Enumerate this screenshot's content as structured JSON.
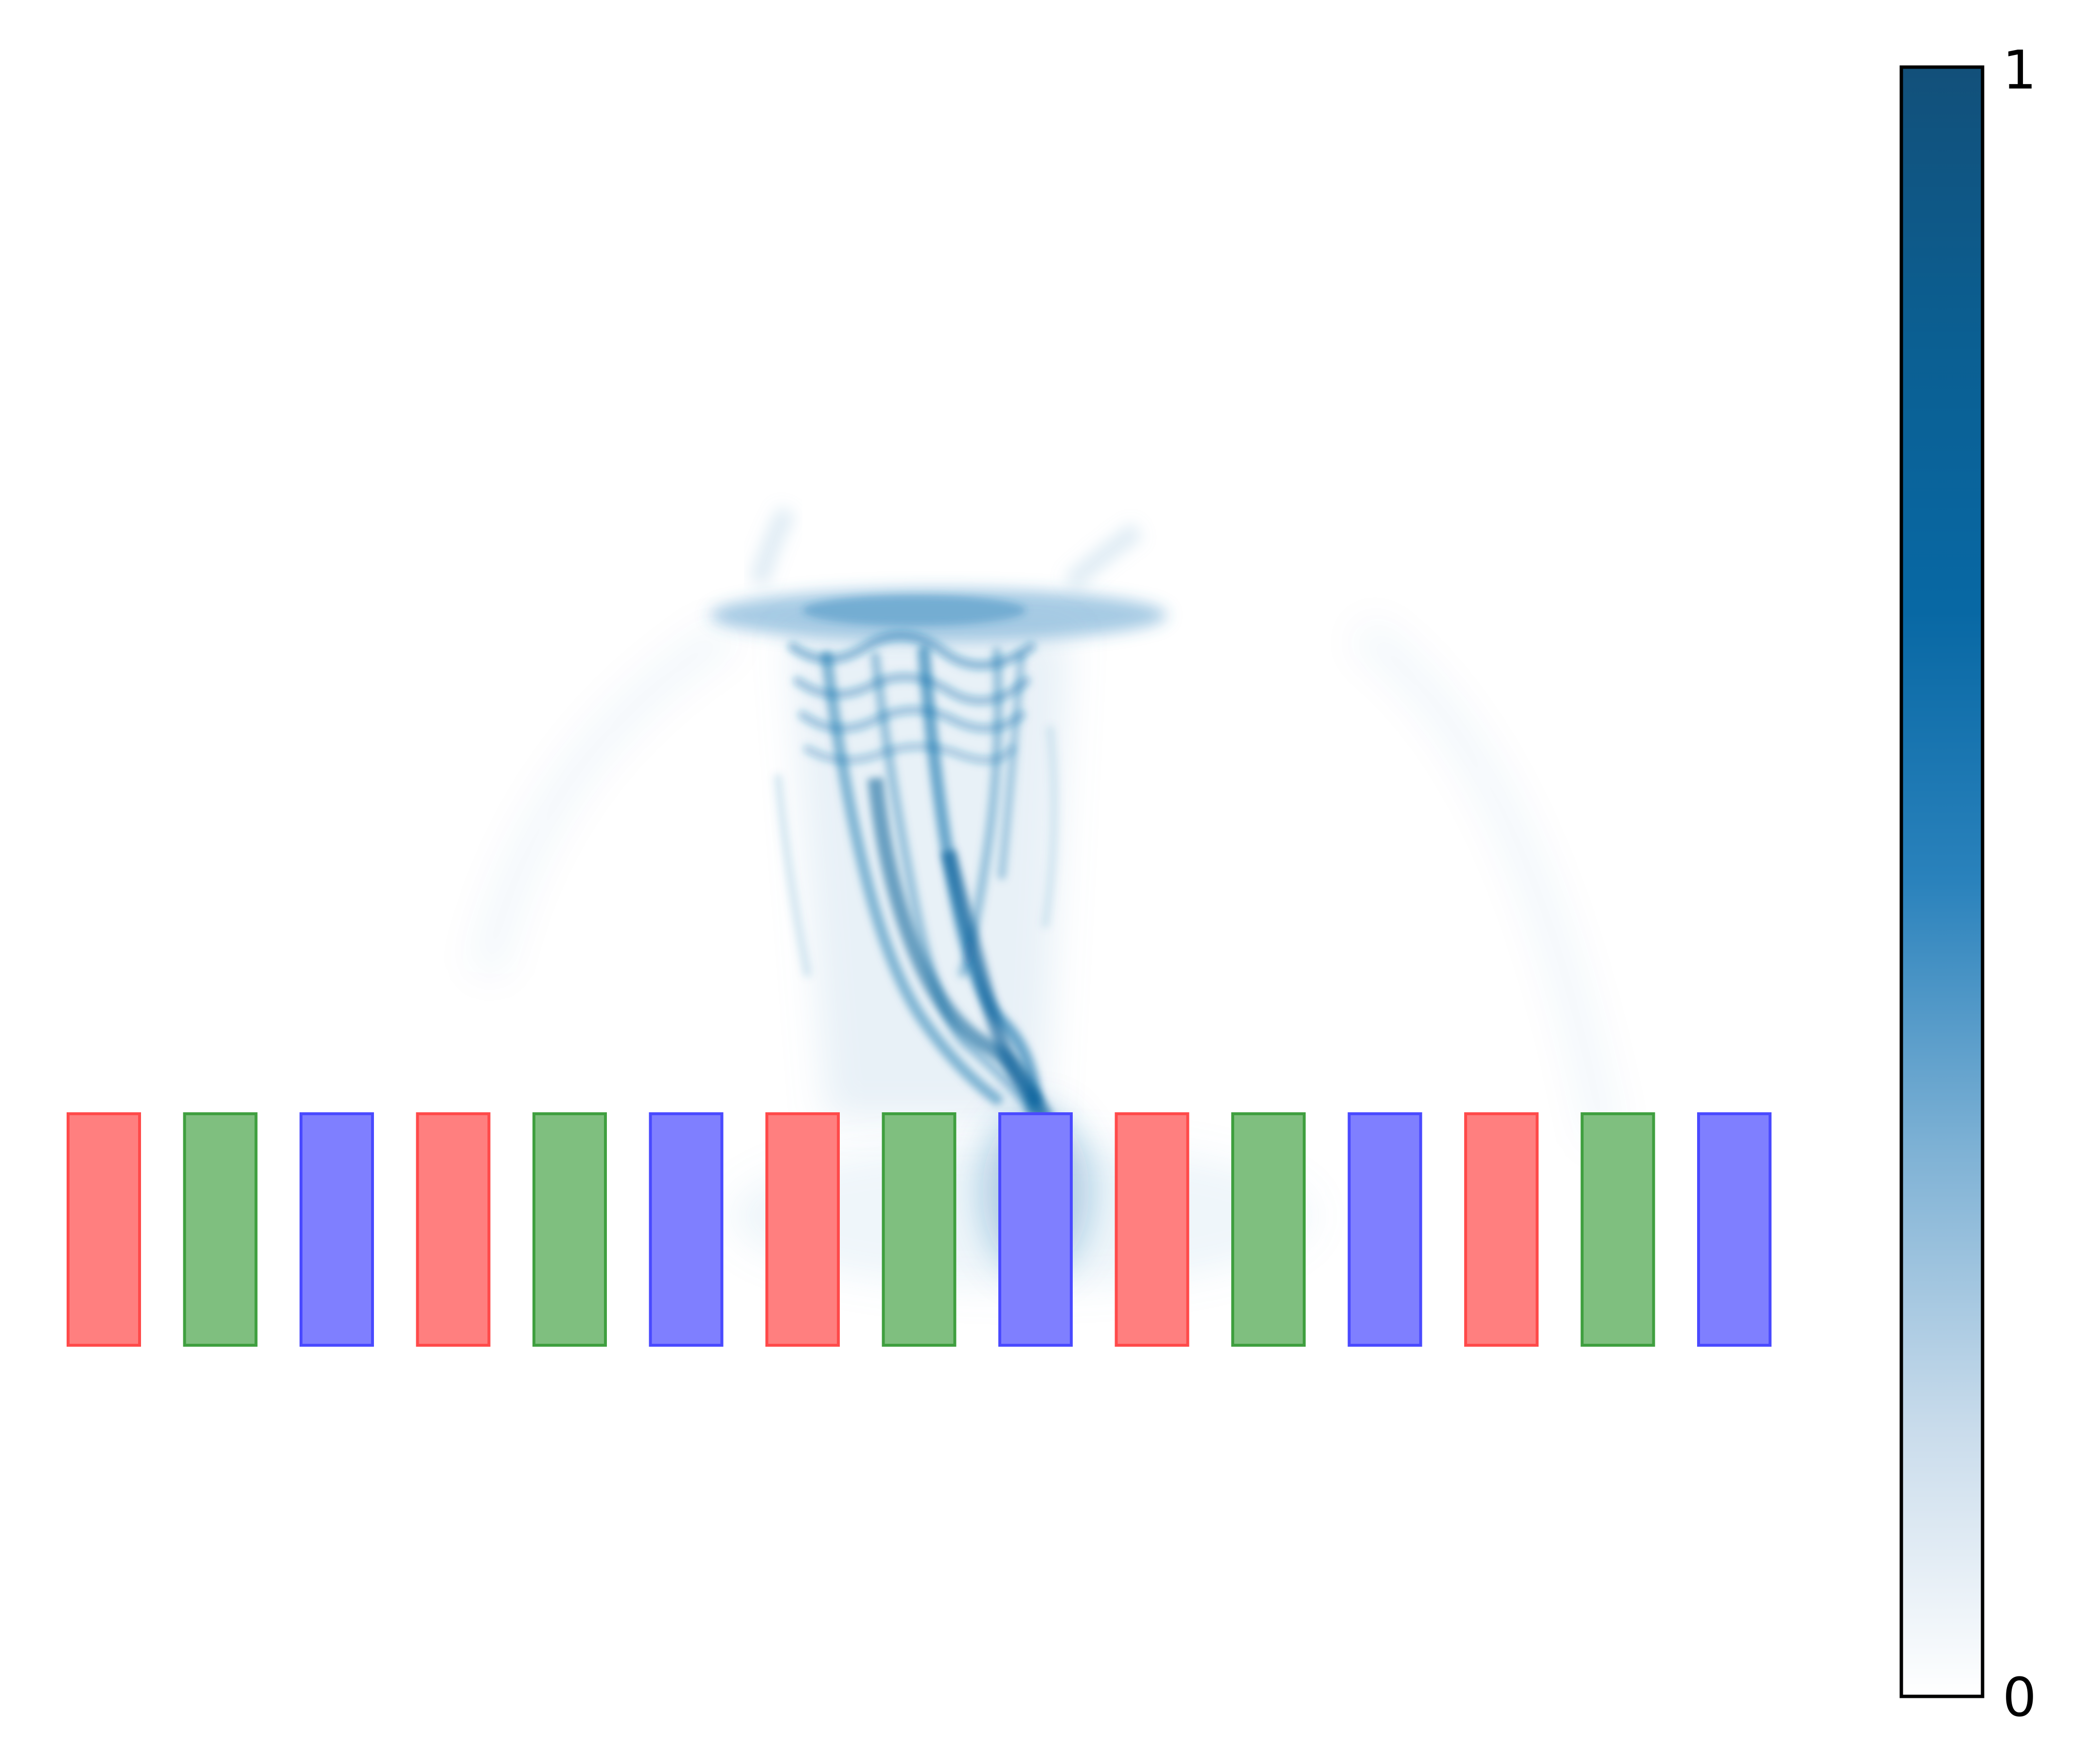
{
  "colorbar": {
    "max_label": "1",
    "min_label": "0",
    "colors": [
      "#ffffff",
      "#c8dbeb",
      "#7fb2d5",
      "#2a82bc",
      "#0868a4",
      "#0b5f92",
      "#12507a"
    ]
  },
  "stripes": {
    "count": 15,
    "pattern": [
      "red",
      "green",
      "blue"
    ],
    "fill_colors": {
      "red": "#ff7f7f",
      "green": "#7fbf7f",
      "blue": "#7f7fff"
    },
    "stroke_colors": {
      "red": "#ff4a4a",
      "green": "#3f9f3f",
      "blue": "#4a4aff"
    }
  },
  "intensity_color": "#0b6aa8"
}
